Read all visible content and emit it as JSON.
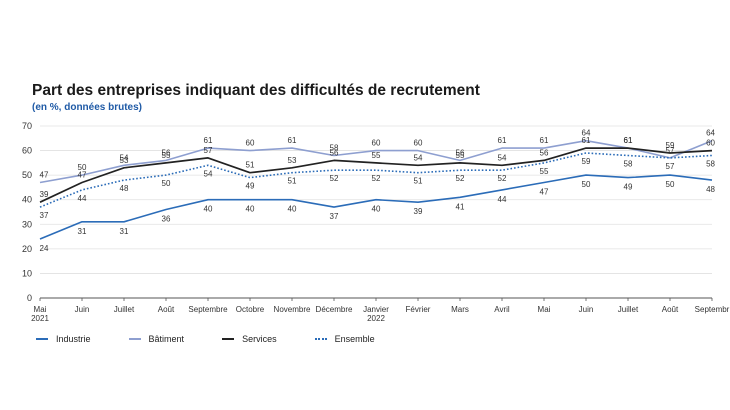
{
  "chart_data": {
    "type": "line",
    "title": "Part des entreprises indiquant des difficultés de recrutement",
    "subtitle": "(en %, données brutes)",
    "ylim": [
      0,
      70
    ],
    "yticks": [
      0,
      10,
      20,
      30,
      40,
      50,
      60,
      70
    ],
    "categories": [
      [
        "Mai",
        "2021"
      ],
      [
        "Juin"
      ],
      [
        "Juillet"
      ],
      [
        "Août"
      ],
      [
        "Septembre"
      ],
      [
        "Octobre"
      ],
      [
        "Novembre"
      ],
      [
        "Décembre"
      ],
      [
        "Janvier",
        "2022"
      ],
      [
        "Février"
      ],
      [
        "Mars"
      ],
      [
        "Avril"
      ],
      [
        "Mai"
      ],
      [
        "Juin"
      ],
      [
        "Juillet"
      ],
      [
        "Août"
      ],
      [
        "Septembr"
      ]
    ],
    "grid": true,
    "legend_position": "bottom-left",
    "series": [
      {
        "name": "Industrie",
        "color": "#2b6cb8",
        "style": "solid",
        "values": [
          24,
          31,
          31,
          36,
          40,
          40,
          40,
          37,
          40,
          39,
          41,
          44,
          47,
          50,
          49,
          50,
          48
        ],
        "labels": [
          "24",
          "31",
          "31",
          "36",
          "40",
          "40",
          "40",
          "37",
          "40",
          "39",
          "41",
          "44",
          "47",
          "50",
          "49",
          "50",
          "48"
        ]
      },
      {
        "name": "Bâtiment",
        "color": "#8e9fd0",
        "style": "solid",
        "values": [
          47,
          50,
          54,
          56,
          61,
          60,
          61,
          58,
          60,
          60,
          56,
          61,
          61,
          64,
          61,
          57,
          64
        ],
        "labels": [
          "47",
          "50",
          "54",
          "56",
          "61",
          "60",
          "61",
          "58",
          "60",
          "60",
          "56",
          "61",
          "61",
          "64",
          "61",
          "57",
          "64"
        ]
      },
      {
        "name": "Services",
        "color": "#222222",
        "style": "solid",
        "values": [
          39,
          47,
          53,
          55,
          57,
          51,
          53,
          56,
          55,
          54,
          55,
          54,
          56,
          61,
          61,
          59,
          60
        ],
        "labels": [
          "39",
          "47",
          "53",
          "55",
          "57",
          "51",
          "53",
          "56",
          "55",
          "54",
          "55",
          "54",
          "56",
          "61",
          "61",
          "59",
          "60"
        ]
      },
      {
        "name": "Ensemble",
        "color": "#2b6cb8",
        "style": "dotted",
        "values": [
          37,
          44,
          48,
          50,
          54,
          49,
          51,
          52,
          52,
          51,
          52,
          52,
          55,
          59,
          58,
          57,
          58
        ],
        "labels": [
          "37",
          "44",
          "48",
          "50",
          "54",
          "49",
          "51",
          "52",
          "52",
          "51",
          "52",
          "52",
          "55",
          "59",
          "58",
          "57",
          "58"
        ]
      }
    ]
  }
}
